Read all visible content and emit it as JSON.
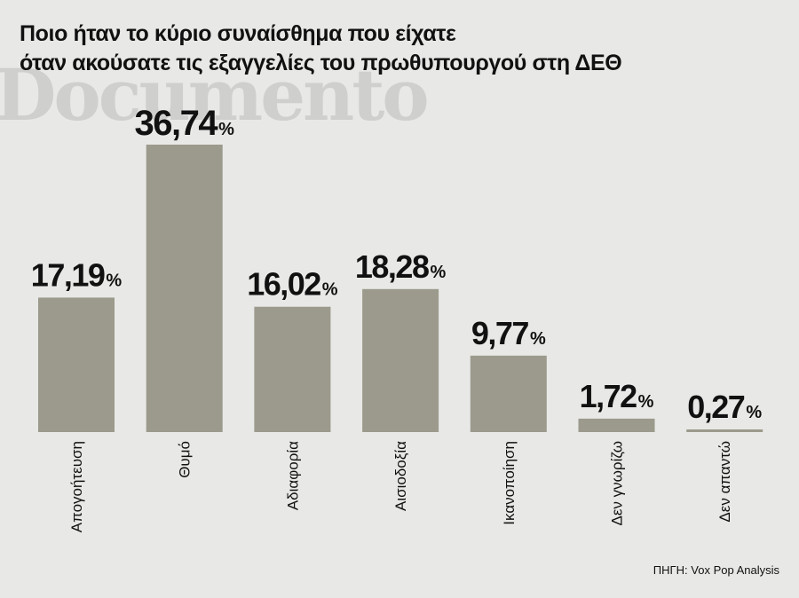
{
  "title_lines": [
    "Ποιο ήταν το κύριο συναίσθημα που είχατε",
    "όταν ακούσατε τις εξαγγελίες του πρωθυπουργού στη ΔΕΘ"
  ],
  "watermark": "Documento",
  "source": "ΠΗΓΗ: Vox Pop Analysis",
  "colors": {
    "bar": "#9c9a8c",
    "background": "#e8e8e6",
    "text": "#111111"
  },
  "chart_data": {
    "type": "bar",
    "title": "Ποιο ήταν το κύριο συναίσθημα που είχατε όταν ακούσατε τις εξαγγελίες του πρωθυπουργού στη ΔΕΘ",
    "categories": [
      "Απογοήτευση",
      "Θυμό",
      "Αδιαφορία",
      "Αισιοδοξία",
      "Ικανοποίηση",
      "Δεν γνωρίζω",
      "Δεν απαντώ"
    ],
    "values": [
      17.19,
      36.74,
      16.02,
      18.28,
      9.77,
      1.72,
      0.27
    ],
    "value_labels": [
      "17,19",
      "36,74",
      "16,02",
      "18,28",
      "9,77",
      "1,72",
      "0,27"
    ],
    "unit": "%",
    "xlabel": "",
    "ylabel": "",
    "ylim": [
      0,
      36.74
    ],
    "grid": false,
    "legend": "none"
  }
}
